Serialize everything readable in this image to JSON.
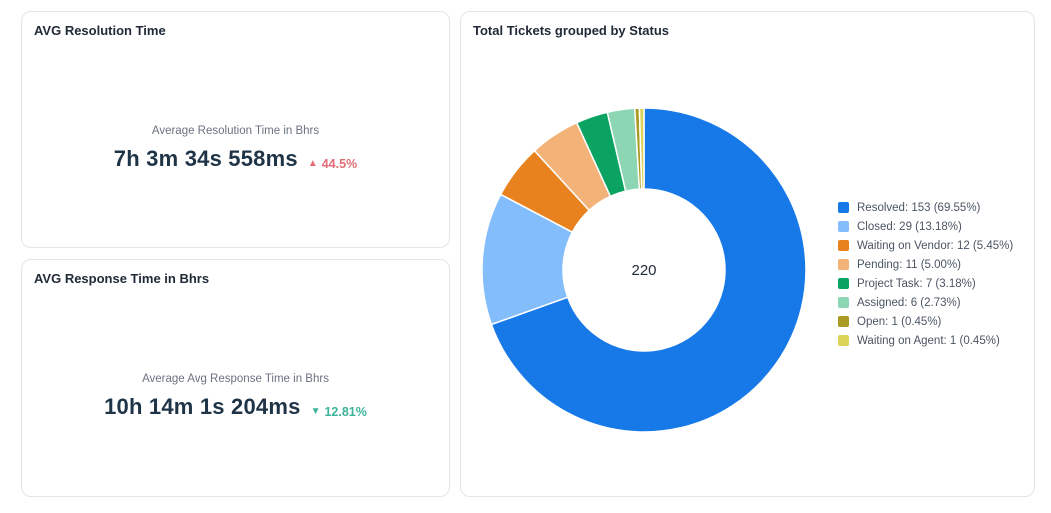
{
  "resolution_card": {
    "title": "AVG Resolution Time",
    "subtitle": "Average Resolution Time in Bhrs",
    "value": "7h 3m 34s 558ms",
    "delta": "44.5%",
    "delta_direction": "up",
    "delta_color": "#e06c75"
  },
  "response_card": {
    "title": "AVG Response Time in Bhrs",
    "subtitle": "Average Avg Response Time in Bhrs",
    "value": "10h 14m 1s 204ms",
    "delta": "12.81%",
    "delta_direction": "down",
    "delta_color": "#3bb39a"
  },
  "status_card": {
    "title": "Total Tickets grouped by Status"
  },
  "chart_data": {
    "type": "pie",
    "variant": "donut",
    "title": "Total Tickets grouped by Status",
    "center_label": "220",
    "legend_position": "right",
    "slices": [
      {
        "label": "Resolved: 153 (69.55%)",
        "value": 153,
        "color": "#1779e8"
      },
      {
        "label": "Closed: 29 (13.18%)",
        "value": 29,
        "color": "#84bdfb"
      },
      {
        "label": "Waiting on Vendor: 12 (5.45%)",
        "value": 12,
        "color": "#e8821f"
      },
      {
        "label": "Pending: 11 (5.00%)",
        "value": 11,
        "color": "#f3b278"
      },
      {
        "label": "Project Task: 7 (3.18%)",
        "value": 7,
        "color": "#0ba361"
      },
      {
        "label": "Assigned: 6 (2.73%)",
        "value": 6,
        "color": "#8dd6b4"
      },
      {
        "label": "Open: 1 (0.45%)",
        "value": 1,
        "color": "#a89a22"
      },
      {
        "label": "Waiting on Agent: 1 (0.45%)",
        "value": 1,
        "color": "#dcd359"
      }
    ]
  }
}
